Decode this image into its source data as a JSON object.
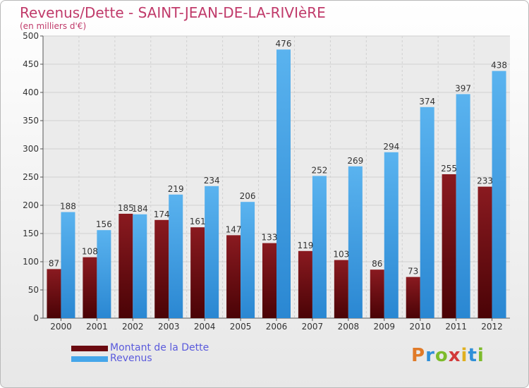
{
  "header": {
    "title": "Revenus/Dette - SAINT-JEAN-DE-LA-RIVIèRE",
    "subtitle": "(en milliers d'€)"
  },
  "chart_data": {
    "type": "bar",
    "categories": [
      "2000",
      "2001",
      "2002",
      "2003",
      "2004",
      "2005",
      "2006",
      "2007",
      "2008",
      "2009",
      "2010",
      "2011",
      "2012"
    ],
    "series": [
      {
        "name": "Montant de la Dette",
        "color": "#7a0d12",
        "values": [
          87,
          108,
          185,
          174,
          161,
          147,
          133,
          119,
          103,
          86,
          73,
          255,
          233
        ]
      },
      {
        "name": "Revenus",
        "color": "#3f9fe6",
        "values": [
          188,
          156,
          184,
          219,
          234,
          206,
          476,
          252,
          269,
          294,
          374,
          397,
          438
        ]
      }
    ],
    "yticks": [
      0,
      50,
      100,
      150,
      200,
      250,
      300,
      350,
      400,
      450,
      500
    ],
    "ylim": [
      0,
      500
    ],
    "grid": true,
    "legend_position": "bottom-left"
  },
  "legend": {
    "items": [
      {
        "label": "Montant de la Dette",
        "color": "#6b0a10"
      },
      {
        "label": "Revenus",
        "color": "#45a6ea"
      }
    ]
  },
  "logo": {
    "letters": [
      "P",
      "r",
      "o",
      "x",
      "i",
      "t",
      "i"
    ],
    "colors": [
      "#e07a28",
      "#2f8fd8",
      "#7dbb2b",
      "#d23a3a",
      "#e0b020",
      "#2f8fd8",
      "#7dbb2b"
    ]
  }
}
